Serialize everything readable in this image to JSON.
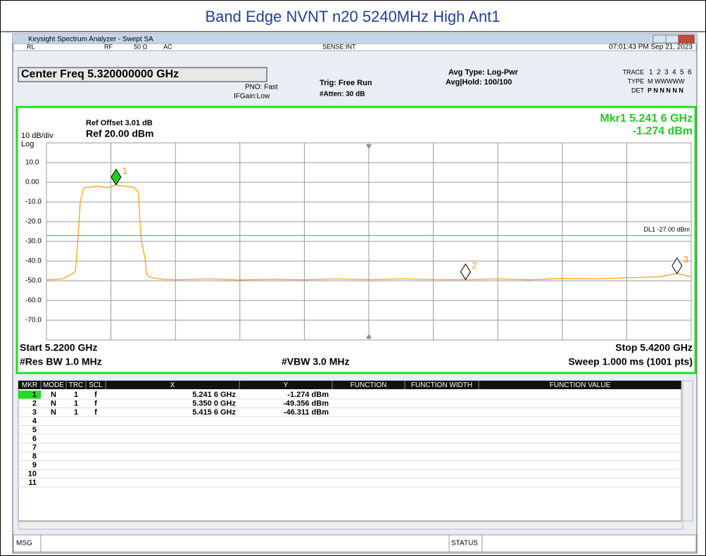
{
  "title": "Band Edge NVNT n20 5240MHz High Ant1",
  "window": {
    "title": "Keysight Spectrum Analyzer - Swept SA"
  },
  "status": {
    "rl": "RL",
    "rf": "RF",
    "impedance": "50 Ω",
    "coupling": "AC",
    "sense": "SENSE:INT",
    "time": "07:01:43 PM Sep 21, 2023"
  },
  "header": {
    "center_freq": "Center Freq 5.320000000 GHz",
    "pno": "PNO: Fast",
    "ifgain": "IFGain:Low",
    "trig": "Trig: Free Run",
    "atten": "#Atten: 30 dB",
    "avg_type": "Avg Type: Log-Pwr",
    "avg_hold": "Avg|Hold: 100/100",
    "trace_label": "TRACE",
    "trace_nums": [
      "1",
      "2",
      "3",
      "4",
      "5",
      "6"
    ],
    "type_label": "TYPE",
    "type_value": "M WWWWW",
    "det_label": "DET",
    "det_value": "P N N N N N"
  },
  "plot": {
    "ref_offset": "Ref Offset 3.01 dB",
    "ref": "Ref 20.00 dBm",
    "scale": "10 dB/div",
    "log": "Log",
    "marker_readout": "Mkr1 5.241 6 GHz",
    "marker_value": "-1.274 dBm",
    "ylim": [
      -80,
      20
    ],
    "xlim": [
      5.22,
      5.42
    ],
    "yticks": [
      {
        "value": 10,
        "label": "10.0"
      },
      {
        "value": 0,
        "label": "0.00"
      },
      {
        "value": -10,
        "label": "-10.0"
      },
      {
        "value": -20,
        "label": "-20.0"
      },
      {
        "value": -30,
        "label": "-30.0"
      },
      {
        "value": -40,
        "label": "-40.0"
      },
      {
        "value": -50,
        "label": "-50.0"
      },
      {
        "value": -60,
        "label": "-60.0"
      },
      {
        "value": -70,
        "label": "-70.0"
      }
    ],
    "xticks": [
      5.24,
      5.26,
      5.28,
      5.3,
      5.32,
      5.34,
      5.36,
      5.38,
      5.4
    ],
    "display_line": {
      "value": -27,
      "label": "DL1 -27.00 dBm"
    },
    "trace": {
      "color": "#ff9900",
      "x": [
        5.22,
        5.225,
        5.2275,
        5.229,
        5.2295,
        5.2305,
        5.2315,
        5.233,
        5.236,
        5.239,
        5.2416,
        5.244,
        5.247,
        5.2485,
        5.249,
        5.2495,
        5.2505,
        5.251,
        5.2515,
        5.253,
        5.255,
        5.26,
        5.27,
        5.28,
        5.29,
        5.3,
        5.31,
        5.32,
        5.33,
        5.34,
        5.35,
        5.36,
        5.37,
        5.38,
        5.39,
        5.4,
        5.41,
        5.4156,
        5.42
      ],
      "y": [
        -49.5,
        -49,
        -47,
        -45,
        -35,
        -10,
        -3,
        -2.5,
        -2,
        -2.8,
        -1.3,
        -2,
        -2.5,
        -5,
        -20,
        -30,
        -38,
        -46,
        -47.5,
        -48.5,
        -49,
        -49.5,
        -49,
        -49.6,
        -49.2,
        -49.5,
        -49,
        -49.4,
        -49,
        -49.3,
        -49.4,
        -49,
        -49.5,
        -48.8,
        -49,
        -48.5,
        -48,
        -46.3,
        -48
      ]
    },
    "markers": [
      {
        "label": "1",
        "x": 5.2416,
        "y": -1.274
      },
      {
        "label": "2",
        "x": 5.35,
        "y": -49.356
      },
      {
        "label": "3",
        "x": 5.4156,
        "y": -46.311
      }
    ],
    "start": "Start 5.2200 GHz",
    "stop": "Stop 5.4200 GHz",
    "rbw": "#Res BW 1.0 MHz",
    "vbw": "#VBW 3.0 MHz",
    "sweep": "Sweep  1.000 ms (1001 pts)"
  },
  "table": {
    "columns": [
      "MKR",
      "MODE",
      "TRC",
      "SCL",
      "X",
      "Y",
      "FUNCTION",
      "FUNCTION WIDTH",
      "FUNCTION VALUE"
    ],
    "rows": [
      [
        "1",
        "N",
        "1",
        "f",
        "5.241 6 GHz",
        "-1.274 dBm"
      ],
      [
        "2",
        "N",
        "1",
        "f",
        "5.350 0 GHz",
        "-49.356 dBm"
      ],
      [
        "3",
        "N",
        "1",
        "f",
        "5.415 6 GHz",
        "-46.311 dBm"
      ],
      [
        "4"
      ],
      [
        "5"
      ],
      [
        "6"
      ],
      [
        "7"
      ],
      [
        "8"
      ],
      [
        "9"
      ],
      [
        "10"
      ],
      [
        "11"
      ]
    ]
  },
  "footer": {
    "msg": "MSG",
    "status": "STATUS"
  }
}
